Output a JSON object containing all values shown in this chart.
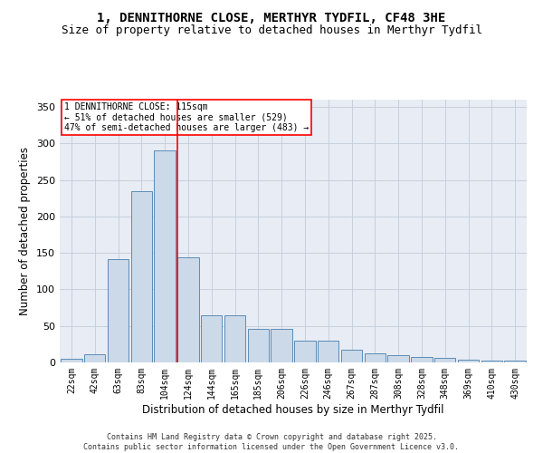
{
  "title1": "1, DENNITHORNE CLOSE, MERTHYR TYDFIL, CF48 3HE",
  "title2": "Size of property relative to detached houses in Merthyr Tydfil",
  "xlabel": "Distribution of detached houses by size in Merthyr Tydfil",
  "ylabel": "Number of detached properties",
  "categories": [
    "22sqm",
    "42sqm",
    "63sqm",
    "83sqm",
    "104sqm",
    "124sqm",
    "144sqm",
    "165sqm",
    "185sqm",
    "206sqm",
    "226sqm",
    "246sqm",
    "267sqm",
    "287sqm",
    "308sqm",
    "328sqm",
    "348sqm",
    "369sqm",
    "410sqm",
    "430sqm"
  ],
  "values": [
    5,
    11,
    141,
    235,
    290,
    144,
    65,
    65,
    46,
    46,
    30,
    30,
    18,
    13,
    10,
    7,
    6,
    4,
    3,
    2
  ],
  "bar_color": "#ccd9e8",
  "bar_edge_color": "#5b8db8",
  "grid_color": "#c8d0dc",
  "bg_color": "#e8ecf4",
  "vline_x": 4.55,
  "vline_color": "red",
  "annotation_text": "1 DENNITHORNE CLOSE: 115sqm\n← 51% of detached houses are smaller (529)\n47% of semi-detached houses are larger (483) →",
  "ylim": [
    0,
    360
  ],
  "yticks": [
    0,
    50,
    100,
    150,
    200,
    250,
    300,
    350
  ],
  "footer": "Contains HM Land Registry data © Crown copyright and database right 2025.\nContains public sector information licensed under the Open Government Licence v3.0.",
  "title_fontsize": 10,
  "subtitle_fontsize": 9,
  "tick_fontsize": 7,
  "ylabel_fontsize": 8.5,
  "xlabel_fontsize": 8.5,
  "footer_fontsize": 6
}
